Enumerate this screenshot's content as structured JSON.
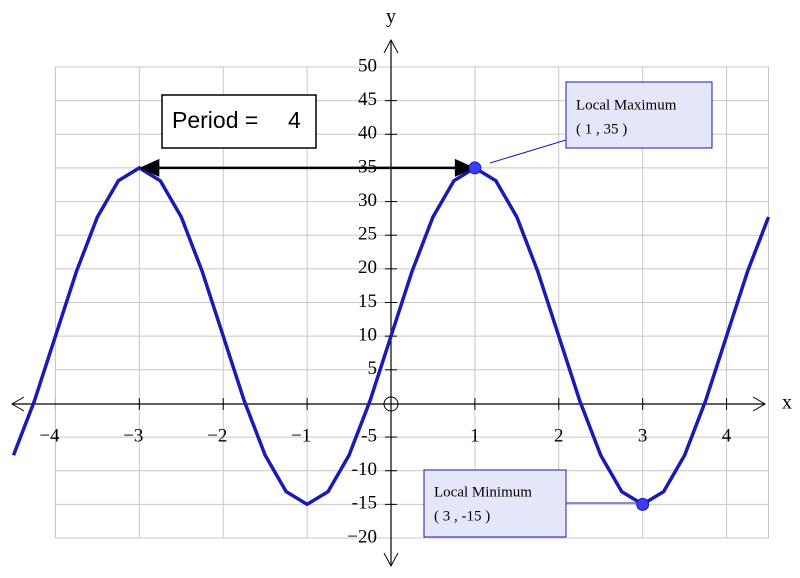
{
  "chart_data": {
    "type": "line",
    "x_label": "x",
    "y_label": "y",
    "x": [
      -4.5,
      -4.25,
      -4,
      -3.75,
      -3.5,
      -3.25,
      -3,
      -2.75,
      -2.5,
      -2.25,
      -2,
      -1.75,
      -1.5,
      -1.25,
      -1,
      -0.75,
      -0.5,
      -0.25,
      0,
      0.25,
      0.5,
      0.75,
      1,
      1.25,
      1.5,
      1.75,
      2,
      2.25,
      2.5,
      2.75,
      3,
      3.25,
      3.5,
      3.75,
      4,
      4.25,
      4.5
    ],
    "series": [
      {
        "color": "#1a1ab4",
        "values": [
          -7.7,
          0.4,
          10,
          19.6,
          27.7,
          33.1,
          35,
          33.1,
          27.7,
          19.6,
          10,
          0.4,
          -7.7,
          -13.1,
          -15,
          -13.1,
          -7.7,
          0.4,
          10,
          19.6,
          27.7,
          33.1,
          35,
          33.1,
          27.7,
          19.6,
          10,
          0.4,
          -7.7,
          -13.1,
          -15,
          -13.1,
          -7.7,
          0.4,
          10,
          19.6,
          27.7
        ]
      }
    ],
    "xlim": [
      -4.5,
      4.5
    ],
    "ylim": [
      -20,
      50
    ],
    "xticks": [
      {
        "value": -4,
        "label": "−4"
      },
      {
        "value": -3,
        "label": "−3"
      },
      {
        "value": -2,
        "label": "−2"
      },
      {
        "value": -1,
        "label": "−1"
      },
      1,
      2,
      3,
      4
    ],
    "yticks": [
      50,
      45,
      40,
      35,
      30,
      25,
      20,
      15,
      10,
      5,
      {
        "value": -5,
        "label": "-5"
      },
      {
        "value": -10,
        "label": "-10"
      },
      {
        "value": -15,
        "label": "-15"
      },
      {
        "value": -20,
        "label": "−20"
      }
    ],
    "grid": true,
    "period": {
      "label": "Period =",
      "value": 4
    },
    "points": [
      {
        "label": "Local Maximum",
        "coords": "( 1 , 35 )",
        "x": 1,
        "y": 35
      },
      {
        "label": "Local Minimum",
        "coords": "( 3 , -15 )",
        "x": 3,
        "y": -15
      }
    ]
  }
}
